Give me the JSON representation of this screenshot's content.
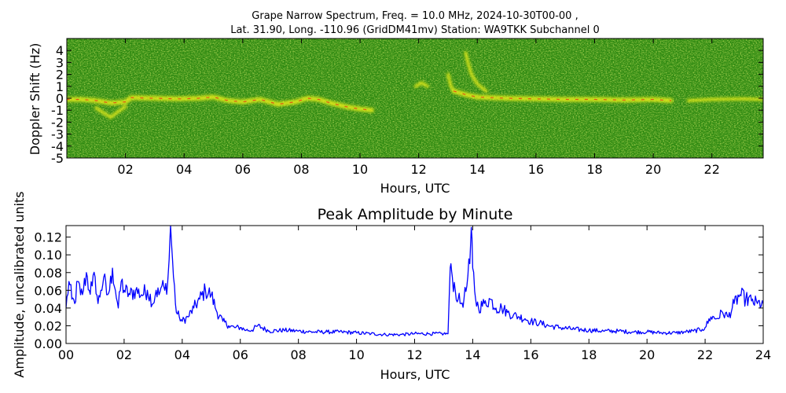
{
  "chart_data": [
    {
      "type": "heatmap",
      "title_line1": "Grape Narrow Spectrum, Freq. = 10.0 MHz, 2024-10-30T00-00 ,",
      "title_line2": "Lat.  31.90, Long. -110.96 (GridDM41mv) Station: WA9TKK Subchannel 0",
      "xlabel": "Hours, UTC",
      "ylabel": "Doppler Shift (Hz)",
      "xlim": [
        0,
        23.75
      ],
      "ylim": [
        -5,
        5
      ],
      "x_ticks": [
        2,
        4,
        6,
        8,
        10,
        12,
        14,
        16,
        18,
        20,
        22
      ],
      "x_tick_labels": [
        "02",
        "04",
        "06",
        "08",
        "10",
        "12",
        "14",
        "16",
        "18",
        "20",
        "22"
      ],
      "y_ticks": [
        -5,
        -4,
        -3,
        -2,
        -1,
        0,
        1,
        2,
        3,
        4
      ],
      "y_tick_labels": [
        "-5",
        "-4",
        "-3",
        "-2",
        "-1",
        "0",
        "1",
        "2",
        "3",
        "4"
      ],
      "colors": {
        "background": "#2f8a12",
        "noise": "#7ab81a",
        "moderate": "#e8ec1a",
        "peak": "#e82010"
      },
      "traces": [
        {
          "name": "main",
          "points": [
            [
              0.0,
              -0.1
            ],
            [
              0.5,
              -0.1
            ],
            [
              1.0,
              -0.2
            ],
            [
              1.5,
              -0.4
            ],
            [
              2.0,
              -0.3
            ],
            [
              2.2,
              0.05
            ],
            [
              3.0,
              0.0
            ],
            [
              3.8,
              -0.05
            ],
            [
              4.5,
              0.0
            ],
            [
              5.0,
              0.1
            ],
            [
              5.5,
              -0.2
            ],
            [
              6.0,
              -0.3
            ],
            [
              6.6,
              -0.1
            ],
            [
              7.2,
              -0.5
            ],
            [
              7.8,
              -0.3
            ],
            [
              8.2,
              0.0
            ],
            [
              8.6,
              -0.1
            ],
            [
              9.0,
              -0.4
            ],
            [
              9.5,
              -0.7
            ],
            [
              10.0,
              -0.9
            ],
            [
              10.4,
              -1.0
            ]
          ],
          "intensity": "high"
        },
        {
          "name": "morning-spread",
          "points": [
            [
              1.0,
              -0.8
            ],
            [
              1.3,
              -1.3
            ],
            [
              1.5,
              -1.6
            ],
            [
              1.7,
              -1.2
            ],
            [
              2.0,
              -0.7
            ]
          ],
          "intensity": "moderate"
        },
        {
          "name": "afternoon",
          "points": [
            [
              13.2,
              0.6
            ],
            [
              13.6,
              0.3
            ],
            [
              14.0,
              0.1
            ],
            [
              15.0,
              0.0
            ],
            [
              16.0,
              -0.05
            ],
            [
              17.0,
              -0.1
            ],
            [
              18.0,
              -0.1
            ],
            [
              19.0,
              -0.15
            ],
            [
              20.0,
              -0.1
            ],
            [
              20.6,
              -0.2
            ]
          ],
          "intensity": "high"
        },
        {
          "name": "evening",
          "points": [
            [
              21.2,
              -0.2
            ],
            [
              22.0,
              -0.1
            ],
            [
              23.0,
              -0.05
            ],
            [
              23.7,
              -0.1
            ]
          ],
          "intensity": "moderate"
        },
        {
          "name": "hook-13",
          "points": [
            [
              13.0,
              2.0
            ],
            [
              13.1,
              1.0
            ],
            [
              13.2,
              0.6
            ]
          ],
          "intensity": "moderate"
        },
        {
          "name": "hook-14",
          "points": [
            [
              13.6,
              3.8
            ],
            [
              13.7,
              2.8
            ],
            [
              13.8,
              2.0
            ],
            [
              14.0,
              1.2
            ],
            [
              14.3,
              0.6
            ]
          ],
          "intensity": "moderate"
        },
        {
          "name": "blip-12",
          "points": [
            [
              11.9,
              1.0
            ],
            [
              12.1,
              1.3
            ],
            [
              12.3,
              1.0
            ]
          ],
          "intensity": "moderate"
        }
      ]
    },
    {
      "type": "line",
      "title": "Peak Amplitude by Minute",
      "xlabel": "Hours, UTC",
      "ylabel": "Amplitude, uncalibrated units",
      "xlim": [
        0,
        24
      ],
      "ylim": [
        0,
        0.133
      ],
      "x_ticks": [
        0,
        2,
        4,
        6,
        8,
        10,
        12,
        14,
        16,
        18,
        20,
        22,
        24
      ],
      "x_tick_labels": [
        "00",
        "02",
        "04",
        "06",
        "08",
        "10",
        "12",
        "14",
        "16",
        "18",
        "20",
        "22",
        "24"
      ],
      "y_ticks": [
        0,
        0.02,
        0.04,
        0.06,
        0.08,
        0.1,
        0.12
      ],
      "y_tick_labels": [
        "0.00",
        "0.02",
        "0.04",
        "0.06",
        "0.08",
        "0.10",
        "0.12"
      ],
      "colors": {
        "line": "#0000ff"
      },
      "series": [
        {
          "x": [
            0.0,
            0.1,
            0.2,
            0.3,
            0.4,
            0.5,
            0.6,
            0.7,
            0.8,
            0.9,
            1.0,
            1.1,
            1.2,
            1.3,
            1.4,
            1.5,
            1.6,
            1.7,
            1.8,
            1.9,
            2.0,
            2.2,
            2.4,
            2.6,
            2.8,
            3.0,
            3.1,
            3.2,
            3.3,
            3.4,
            3.5,
            3.55,
            3.6,
            3.7,
            3.8,
            3.9,
            4.0,
            4.2,
            4.4,
            4.6,
            4.8,
            5.0,
            5.2,
            5.4,
            5.6,
            5.8,
            6.0,
            6.2,
            6.4,
            6.6,
            7.0,
            7.5,
            8.0,
            8.5,
            9.0,
            9.5,
            10.0,
            10.5,
            11.0,
            11.5,
            12.0,
            12.5,
            13.0,
            13.15,
            13.2,
            13.25,
            13.3,
            13.4,
            13.5,
            13.6,
            13.7,
            13.8,
            13.9,
            13.95,
            14.0,
            14.1,
            14.2,
            14.4,
            14.6,
            14.8,
            15.0,
            15.2,
            15.4,
            15.6,
            15.8,
            16.0,
            16.3,
            16.6,
            17.0,
            17.5,
            18.0,
            18.5,
            19.0,
            19.5,
            20.0,
            20.5,
            21.0,
            21.3,
            21.6,
            21.9,
            22.0,
            22.2,
            22.4,
            22.6,
            22.8,
            23.0,
            23.2,
            23.4,
            23.6,
            23.8,
            24.0
          ],
          "y": [
            0.04,
            0.07,
            0.05,
            0.045,
            0.07,
            0.055,
            0.06,
            0.08,
            0.06,
            0.065,
            0.075,
            0.045,
            0.06,
            0.075,
            0.055,
            0.06,
            0.085,
            0.06,
            0.04,
            0.07,
            0.06,
            0.055,
            0.06,
            0.055,
            0.06,
            0.045,
            0.06,
            0.055,
            0.065,
            0.06,
            0.07,
            0.095,
            0.133,
            0.075,
            0.035,
            0.03,
            0.025,
            0.03,
            0.04,
            0.05,
            0.06,
            0.055,
            0.035,
            0.025,
            0.02,
            0.018,
            0.018,
            0.015,
            0.015,
            0.02,
            0.014,
            0.015,
            0.014,
            0.013,
            0.013,
            0.013,
            0.012,
            0.011,
            0.01,
            0.01,
            0.011,
            0.011,
            0.011,
            0.011,
            0.06,
            0.09,
            0.075,
            0.06,
            0.05,
            0.045,
            0.05,
            0.065,
            0.09,
            0.131,
            0.085,
            0.05,
            0.04,
            0.045,
            0.05,
            0.04,
            0.04,
            0.035,
            0.032,
            0.03,
            0.028,
            0.025,
            0.023,
            0.02,
            0.018,
            0.016,
            0.015,
            0.014,
            0.014,
            0.013,
            0.013,
            0.012,
            0.012,
            0.013,
            0.014,
            0.016,
            0.018,
            0.03,
            0.028,
            0.035,
            0.03,
            0.045,
            0.055,
            0.05,
            0.048,
            0.045,
            0.045
          ]
        }
      ]
    }
  ]
}
